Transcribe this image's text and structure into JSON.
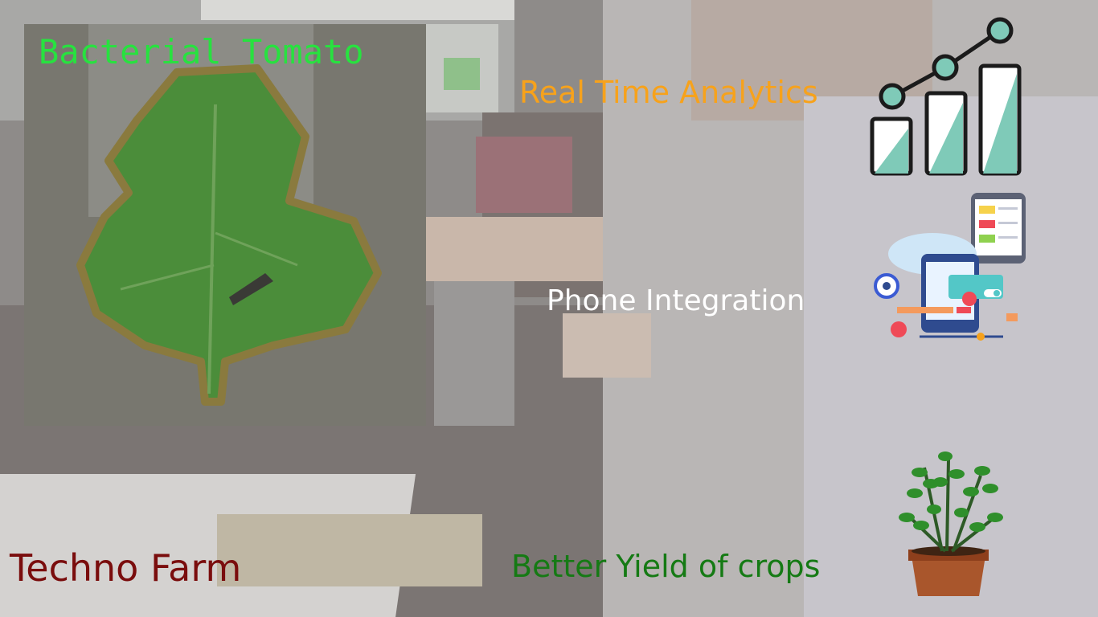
{
  "slide": {
    "leaf_label": "Bacterial Tomato",
    "analytics_caption": "Real Time Analytics",
    "phone_caption": "Phone Integration",
    "brand": "Techno Farm",
    "yield_caption": "Better Yield of crops"
  },
  "colors": {
    "leaf_label": "#27e23f",
    "analytics_caption": "#f7a21b",
    "phone_caption": "#ffffff",
    "brand": "#7a0d0d",
    "yield_caption": "#157a14",
    "chart_accent": "#7fcab8",
    "chart_stroke": "#1b1b1b"
  },
  "icons": [
    "bar-chart-analytics-icon",
    "phone-integration-icon",
    "potted-plant-icon",
    "leaf-image"
  ]
}
